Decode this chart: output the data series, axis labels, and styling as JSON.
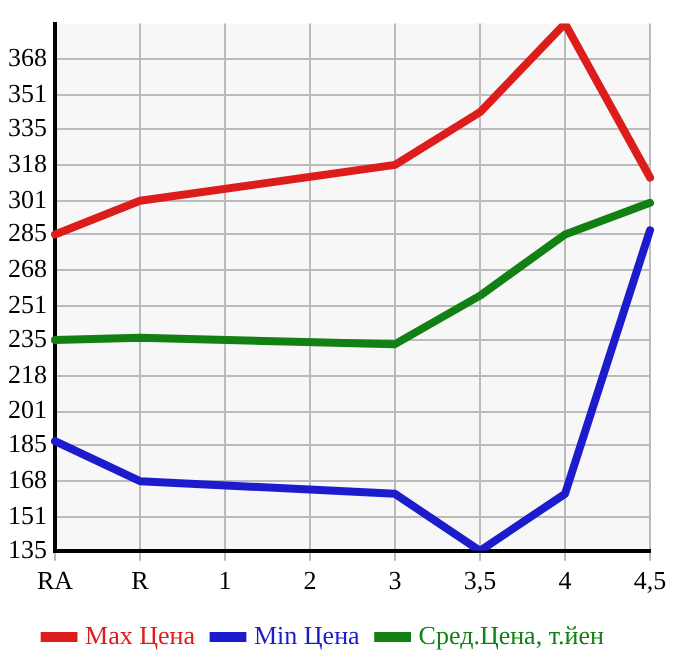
{
  "chart_data": {
    "type": "line",
    "categories": [
      "RA",
      "R",
      "1",
      "2",
      "3",
      "3,5",
      "4",
      "4,5"
    ],
    "series": [
      {
        "name": "Max Цена",
        "color": "#dd1c1c",
        "values": [
          285,
          301,
          null,
          null,
          318,
          343,
          385,
          312
        ]
      },
      {
        "name": "Min Цена",
        "color": "#1c1ccc",
        "values": [
          187,
          168,
          null,
          null,
          162,
          135,
          162,
          287
        ]
      },
      {
        "name": "Сред.Цена, т.йен",
        "color": "#128012",
        "values": [
          235,
          236,
          null,
          null,
          233,
          256,
          285,
          300
        ]
      }
    ],
    "ylim": [
      135,
      385
    ],
    "yticks": [
      135,
      151,
      168,
      185,
      201,
      218,
      235,
      251,
      268,
      285,
      301,
      318,
      335,
      351,
      368
    ],
    "grid": true,
    "legend": "bottom",
    "marker": "none",
    "line_style": "solid"
  }
}
